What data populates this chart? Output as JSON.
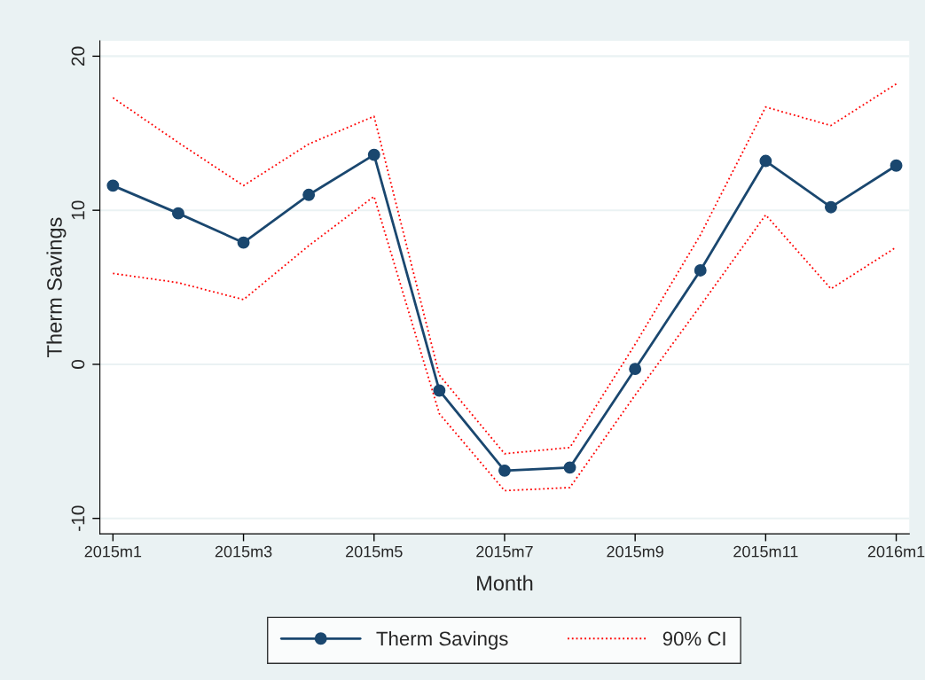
{
  "chart_data": {
    "type": "line",
    "xlabel": "Month",
    "ylabel": "Therm Savings",
    "categories": [
      "2015m1",
      null,
      "2015m3",
      null,
      "2015m5",
      null,
      "2015m7",
      null,
      "2015m9",
      null,
      "2015m11",
      null,
      "2016m1"
    ],
    "series": [
      {
        "name": "Therm Savings",
        "color": "#1a476f",
        "marker": "circle",
        "line_style": "solid",
        "values": [
          11.6,
          9.8,
          7.9,
          11.0,
          13.6,
          -1.7,
          -6.9,
          -6.7,
          -0.3,
          6.1,
          13.2,
          10.2,
          12.9
        ]
      },
      {
        "name": "90% CI",
        "color": "#ff0000",
        "marker": "none",
        "line_style": "dotted",
        "values": [
          17.3,
          14.4,
          11.6,
          14.3,
          16.1,
          -0.7,
          -5.8,
          -5.4,
          1.3,
          8.4,
          16.7,
          15.5,
          18.2
        ]
      },
      {
        "color": "#ff0000",
        "marker": "none",
        "line_style": "dotted",
        "values": [
          5.9,
          5.3,
          4.2,
          7.7,
          10.9,
          -3.2,
          -8.2,
          -8.0,
          -2.0,
          3.8,
          9.7,
          4.9,
          7.6
        ]
      }
    ],
    "ylim": [
      -11,
      21
    ],
    "yticks": [
      -10,
      0,
      10,
      20
    ],
    "grid": "y",
    "legend": "bottom"
  }
}
